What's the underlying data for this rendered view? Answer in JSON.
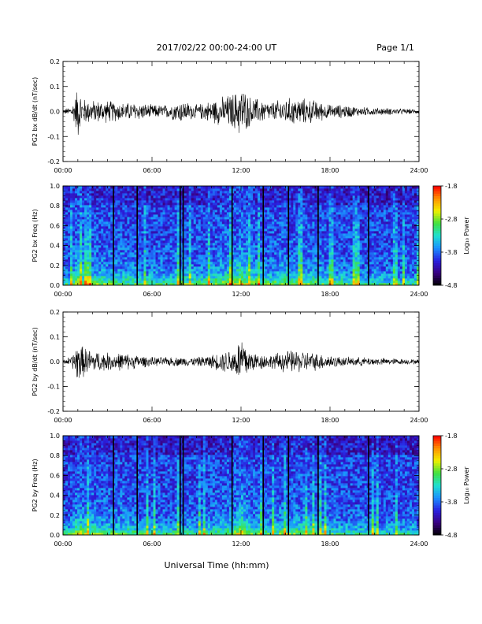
{
  "header": {
    "title": "2017/02/22  00:00-24:00 UT",
    "page": "Page 1/1"
  },
  "footer": {
    "xlabel": "Universal Time (hh:mm)"
  },
  "colorbar": {
    "label": "Log₁₀ Power",
    "ticks": [
      "-1.8",
      "-2.8",
      "-3.8",
      "-4.8"
    ],
    "values": [
      -1.8,
      -2.8,
      -3.8,
      -4.8
    ],
    "range": [
      -4.8,
      -1.8
    ],
    "colormap": [
      "#000000",
      "#3a0080",
      "#2a20e0",
      "#1a90ff",
      "#20e0d0",
      "#40e040",
      "#f0f000",
      "#ff9000",
      "#ff0000"
    ]
  },
  "chart_data": [
    {
      "type": "line",
      "title": "",
      "ylabel": "PG2 bx dB/dt (nT/sec)",
      "xlabel": "",
      "xlim": [
        0,
        24
      ],
      "ylim": [
        -0.2,
        0.2
      ],
      "yticks": [
        "0.2",
        "0.1",
        "0.0",
        "-0.1",
        "-0.2"
      ],
      "ytick_values": [
        0.2,
        0.1,
        0.0,
        -0.1,
        -0.2
      ],
      "xticks": [
        "00:00",
        "06:00",
        "12:00",
        "18:00",
        "24:00"
      ],
      "envelope": {
        "x_hours": [
          0,
          0.5,
          0.8,
          1.0,
          1.3,
          2.0,
          3.0,
          4.0,
          5.0,
          6.0,
          7.0,
          8.0,
          9.0,
          10.0,
          11.0,
          11.7,
          12.0,
          12.5,
          13.0,
          14.0,
          15.0,
          16.0,
          17.0,
          18.0,
          19.0,
          20.0,
          22.0,
          24.0
        ],
        "amplitude": [
          0.01,
          0.02,
          0.06,
          0.12,
          0.06,
          0.05,
          0.05,
          0.04,
          0.04,
          0.03,
          0.03,
          0.05,
          0.03,
          0.05,
          0.07,
          0.09,
          0.12,
          0.07,
          0.06,
          0.04,
          0.06,
          0.06,
          0.05,
          0.03,
          0.03,
          0.02,
          0.015,
          0.01
        ]
      }
    },
    {
      "type": "heatmap",
      "title": "",
      "ylabel": "PG2 bx Freq (Hz)",
      "xlabel": "",
      "xlim": [
        0,
        24
      ],
      "ylim": [
        0,
        1.0
      ],
      "yticks": [
        "1.0",
        "0.8",
        "0.6",
        "0.4",
        "0.2",
        "0.0"
      ],
      "ytick_values": [
        1.0,
        0.8,
        0.6,
        0.4,
        0.2,
        0.0
      ],
      "xticks": [
        "00:00",
        "06:00",
        "12:00",
        "18:00",
        "24:00"
      ],
      "zlim": [
        -4.8,
        -1.8
      ],
      "gap_lines_hours": [
        3.4,
        5.0,
        7.9,
        8.1,
        11.4,
        13.5,
        15.2,
        17.2,
        20.6
      ]
    },
    {
      "type": "line",
      "title": "",
      "ylabel": "PG2 by dB/dt (nT/sec)",
      "xlabel": "",
      "xlim": [
        0,
        24
      ],
      "ylim": [
        -0.2,
        0.2
      ],
      "yticks": [
        "0.2",
        "0.1",
        "0.0",
        "-0.1",
        "-0.2"
      ],
      "ytick_values": [
        0.2,
        0.1,
        0.0,
        -0.1,
        -0.2
      ],
      "xticks": [
        "00:00",
        "06:00",
        "12:00",
        "18:00",
        "24:00"
      ],
      "envelope": {
        "x_hours": [
          0,
          0.5,
          0.8,
          1.0,
          1.3,
          2.0,
          3.0,
          4.0,
          5.0,
          6.0,
          7.0,
          8.0,
          9.0,
          10.0,
          11.0,
          11.7,
          12.0,
          12.5,
          13.0,
          14.0,
          15.0,
          16.0,
          17.0,
          18.0,
          19.0,
          20.0,
          22.0,
          24.0
        ],
        "amplitude": [
          0.01,
          0.02,
          0.05,
          0.1,
          0.07,
          0.05,
          0.04,
          0.04,
          0.03,
          0.02,
          0.02,
          0.02,
          0.02,
          0.03,
          0.05,
          0.07,
          0.13,
          0.06,
          0.04,
          0.03,
          0.05,
          0.05,
          0.04,
          0.03,
          0.02,
          0.02,
          0.015,
          0.01
        ]
      }
    },
    {
      "type": "heatmap",
      "title": "",
      "ylabel": "PG2 by Freq (Hz)",
      "xlabel": "Universal Time (hh:mm)",
      "xlim": [
        0,
        24
      ],
      "ylim": [
        0,
        1.0
      ],
      "yticks": [
        "1.0",
        "0.8",
        "0.6",
        "0.4",
        "0.2",
        "0.0"
      ],
      "ytick_values": [
        1.0,
        0.8,
        0.6,
        0.4,
        0.2,
        0.0
      ],
      "xticks": [
        "00:00",
        "06:00",
        "12:00",
        "18:00",
        "24:00"
      ],
      "zlim": [
        -4.8,
        -1.8
      ],
      "gap_lines_hours": [
        3.4,
        5.0,
        7.9,
        8.1,
        11.4,
        13.5,
        15.2,
        17.2,
        20.6
      ]
    }
  ]
}
